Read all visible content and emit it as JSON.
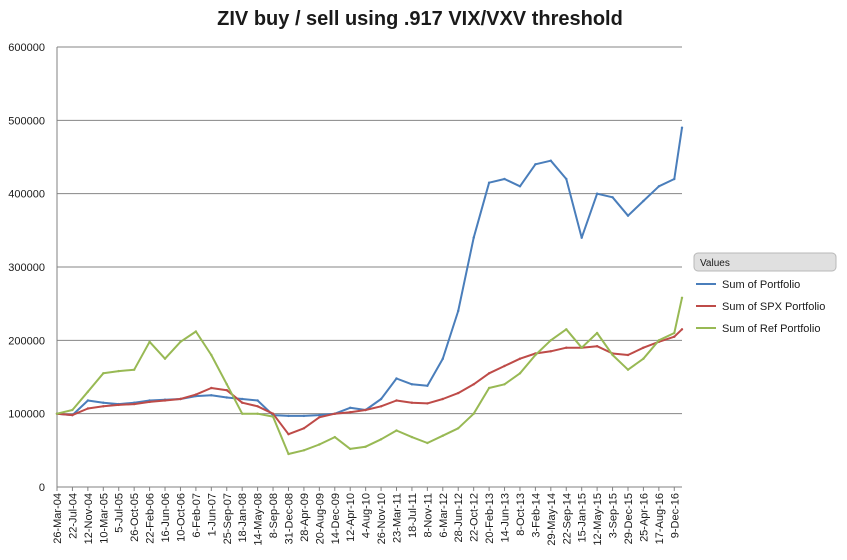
{
  "chart_data": {
    "type": "line",
    "title": "ZIV buy / sell using .917 VIX/VXV threshold",
    "xlabel": "",
    "ylabel": "",
    "ylim": [
      0,
      600000
    ],
    "yticks": [
      0,
      100000,
      200000,
      300000,
      400000,
      500000,
      600000
    ],
    "y_tick_labels": [
      "0",
      "100000",
      "200000",
      "300000",
      "400000",
      "500000",
      "600000"
    ],
    "grid": true,
    "legend_position": "right",
    "legend_header": "Values",
    "x_tick_labels": [
      "26-Mar-04",
      "22-Jul-04",
      "12-Nov-04",
      "10-Mar-05",
      "5-Jul-05",
      "26-Oct-05",
      "22-Feb-06",
      "16-Jun-06",
      "10-Oct-06",
      "6-Feb-07",
      "1-Jun-07",
      "25-Sep-07",
      "18-Jan-08",
      "14-May-08",
      "8-Sep-08",
      "31-Dec-08",
      "28-Apr-09",
      "20-Aug-09",
      "14-Dec-09",
      "12-Apr-10",
      "4-Aug-10",
      "26-Nov-10",
      "23-Mar-11",
      "18-Jul-11",
      "8-Nov-11",
      "6-Mar-12",
      "28-Jun-12",
      "22-Oct-12",
      "20-Feb-13",
      "14-Jun-13",
      "8-Oct-13",
      "3-Feb-14",
      "29-May-14",
      "22-Sep-14",
      "15-Jan-15",
      "12-May-15",
      "3-Sep-15",
      "29-Dec-15",
      "25-Apr-16",
      "17-Aug-16",
      "9-Dec-16"
    ],
    "x": [
      0,
      1,
      2,
      3,
      4,
      5,
      6,
      7,
      8,
      9,
      10,
      11,
      12,
      13,
      14,
      15,
      16,
      17,
      18,
      19,
      20,
      21,
      22,
      23,
      24,
      25,
      26,
      27,
      28,
      29,
      30,
      31,
      32,
      33,
      34,
      35,
      36,
      37,
      38,
      39,
      40,
      40.5
    ],
    "series": [
      {
        "name": "Sum of Portfolio",
        "color": "#4a7ebb",
        "values": [
          100000,
          98000,
          118000,
          115000,
          113000,
          115000,
          118000,
          119000,
          120000,
          124000,
          125000,
          122000,
          120000,
          118000,
          98000,
          97000,
          97000,
          98000,
          100000,
          108000,
          105000,
          120000,
          148000,
          140000,
          138000,
          175000,
          240000,
          340000,
          415000,
          420000,
          410000,
          440000,
          445000,
          420000,
          340000,
          400000,
          395000,
          370000,
          390000,
          410000,
          420000,
          490000
        ]
      },
      {
        "name": "Sum of SPX Portfolio",
        "color": "#be4b48",
        "values": [
          100000,
          98000,
          107000,
          110000,
          112000,
          113000,
          116000,
          118000,
          120000,
          126000,
          135000,
          132000,
          115000,
          110000,
          100000,
          72000,
          80000,
          95000,
          100000,
          102000,
          105000,
          110000,
          118000,
          115000,
          114000,
          120000,
          128000,
          140000,
          155000,
          165000,
          175000,
          182000,
          185000,
          190000,
          190000,
          192000,
          182000,
          180000,
          190000,
          198000,
          205000,
          215000
        ]
      },
      {
        "name": "Sum of Ref Portfolio",
        "color": "#98b954",
        "values": [
          100000,
          105000,
          130000,
          155000,
          158000,
          160000,
          198000,
          175000,
          198000,
          212000,
          180000,
          140000,
          100000,
          100000,
          96000,
          45000,
          50000,
          58000,
          68000,
          52000,
          55000,
          65000,
          77000,
          68000,
          60000,
          70000,
          80000,
          100000,
          135000,
          140000,
          155000,
          180000,
          200000,
          215000,
          190000,
          210000,
          180000,
          160000,
          175000,
          200000,
          210000,
          258000
        ]
      }
    ]
  }
}
